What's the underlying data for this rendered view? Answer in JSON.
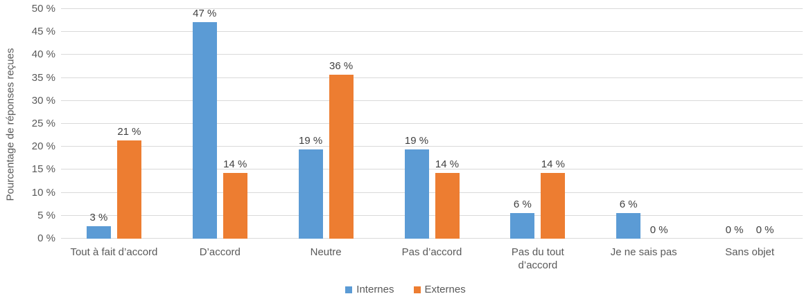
{
  "chart_data": {
    "type": "bar",
    "title": "",
    "xlabel": "",
    "ylabel": "Pourcentage de réponses reçues",
    "ylim": [
      0,
      50
    ],
    "y_ticks": [
      "0 %",
      "5 %",
      "10 %",
      "15 %",
      "20 %",
      "25 %",
      "30 %",
      "35 %",
      "40 %",
      "45 %",
      "50 %"
    ],
    "grid": true,
    "legend_position": "bottom-center",
    "categories": [
      "Tout à fait d’accord",
      "D’accord",
      "Neutre",
      "Pas d’accord",
      "Pas du tout\nd’accord",
      "Je ne sais pas",
      "Sans objet"
    ],
    "series": [
      {
        "name": "Internes",
        "color": "#5B9BD5",
        "values": [
          2.78,
          47.22,
          19.44,
          19.44,
          5.56,
          5.56,
          0
        ],
        "labels": [
          "3 %",
          "47 %",
          "19 %",
          "19 %",
          "6 %",
          "6 %",
          "0 %"
        ]
      },
      {
        "name": "Externes",
        "color": "#ED7D31",
        "values": [
          21.43,
          14.29,
          35.71,
          14.29,
          14.29,
          0,
          0
        ],
        "labels": [
          "21 %",
          "14 %",
          "36 %",
          "14 %",
          "14 %",
          "0 %",
          "0 %"
        ]
      }
    ]
  },
  "colors": {
    "background": "#FFFFFF",
    "gridline": "#D9D9D9",
    "axis_text": "#595959",
    "data_label_text": "#404040",
    "series_internes": "#5B9BD5",
    "series_externes": "#ED7D31"
  }
}
